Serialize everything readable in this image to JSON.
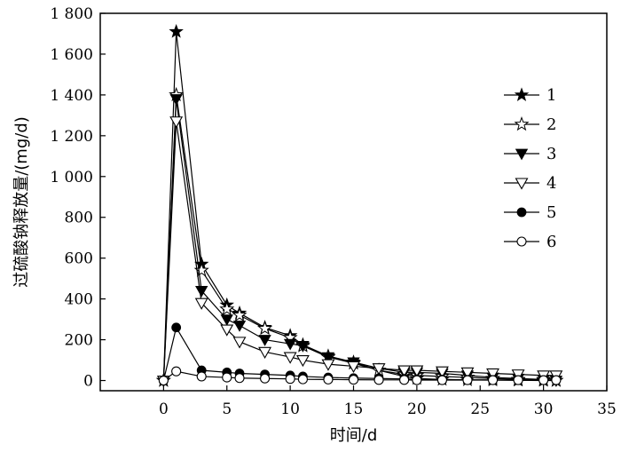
{
  "chart_data": {
    "type": "line",
    "title": "",
    "xlabel": "时间/d",
    "ylabel": "过硫酸钠释放量/(mg/d)",
    "xlim": [
      -5,
      35
    ],
    "ylim": [
      -50,
      1800
    ],
    "x_ticks": [
      0,
      5,
      10,
      15,
      20,
      25,
      30,
      35
    ],
    "x_tick_labels": [
      "0",
      "5",
      "10",
      "15",
      "20",
      "25",
      "30",
      "35"
    ],
    "y_ticks": [
      0,
      200,
      400,
      600,
      800,
      1000,
      1200,
      1400,
      1600,
      1800
    ],
    "y_tick_labels": [
      "0",
      "200",
      "400",
      "600",
      "800",
      "1 000",
      "1 200",
      "1 400",
      "1 600",
      "1 800"
    ],
    "grid": false,
    "legend_position": "right",
    "series": [
      {
        "name": "1",
        "marker": "filled-star",
        "x": [
          0,
          1,
          3,
          5,
          6,
          8,
          10,
          11,
          13,
          15,
          17,
          19,
          20,
          22,
          24,
          26,
          28,
          30,
          31
        ],
        "y": [
          0,
          1710,
          570,
          370,
          330,
          260,
          220,
          175,
          120,
          90,
          50,
          20,
          10,
          5,
          3,
          2,
          1,
          0,
          0
        ]
      },
      {
        "name": "2",
        "marker": "open-star",
        "x": [
          0,
          1,
          3,
          5,
          6,
          8,
          10,
          11,
          13,
          15,
          17,
          19,
          20,
          22,
          24,
          26,
          28,
          30,
          31
        ],
        "y": [
          0,
          1400,
          540,
          350,
          320,
          255,
          210,
          170,
          115,
          85,
          50,
          30,
          25,
          20,
          15,
          10,
          5,
          5,
          0
        ]
      },
      {
        "name": "3",
        "marker": "filled-triangle-down",
        "x": [
          0,
          1,
          3,
          5,
          6,
          8,
          10,
          11,
          13,
          15,
          17,
          19,
          20,
          22,
          24,
          26,
          28,
          30,
          31
        ],
        "y": [
          0,
          1380,
          440,
          300,
          270,
          200,
          180,
          170,
          115,
          90,
          60,
          40,
          40,
          35,
          25,
          15,
          10,
          5,
          0
        ]
      },
      {
        "name": "4",
        "marker": "open-triangle-down",
        "x": [
          0,
          1,
          3,
          5,
          6,
          8,
          10,
          11,
          13,
          15,
          17,
          19,
          20,
          22,
          24,
          26,
          28,
          30,
          31
        ],
        "y": [
          0,
          1270,
          380,
          250,
          190,
          140,
          115,
          100,
          80,
          70,
          60,
          50,
          50,
          45,
          40,
          35,
          30,
          25,
          25
        ]
      },
      {
        "name": "5",
        "marker": "filled-circle",
        "x": [
          0,
          1,
          3,
          5,
          6,
          8,
          10,
          11,
          13,
          15,
          17,
          19,
          20,
          22,
          24,
          26,
          28,
          30,
          31
        ],
        "y": [
          0,
          260,
          50,
          40,
          35,
          30,
          25,
          20,
          15,
          12,
          10,
          8,
          6,
          5,
          4,
          3,
          2,
          2,
          2
        ]
      },
      {
        "name": "6",
        "marker": "open-circle",
        "x": [
          0,
          1,
          3,
          5,
          6,
          8,
          10,
          11,
          13,
          15,
          17,
          19,
          20,
          22,
          24,
          26,
          28,
          30,
          31
        ],
        "y": [
          0,
          45,
          20,
          15,
          12,
          10,
          8,
          6,
          5,
          4,
          3,
          3,
          2,
          2,
          2,
          2,
          2,
          2,
          2
        ]
      }
    ]
  }
}
